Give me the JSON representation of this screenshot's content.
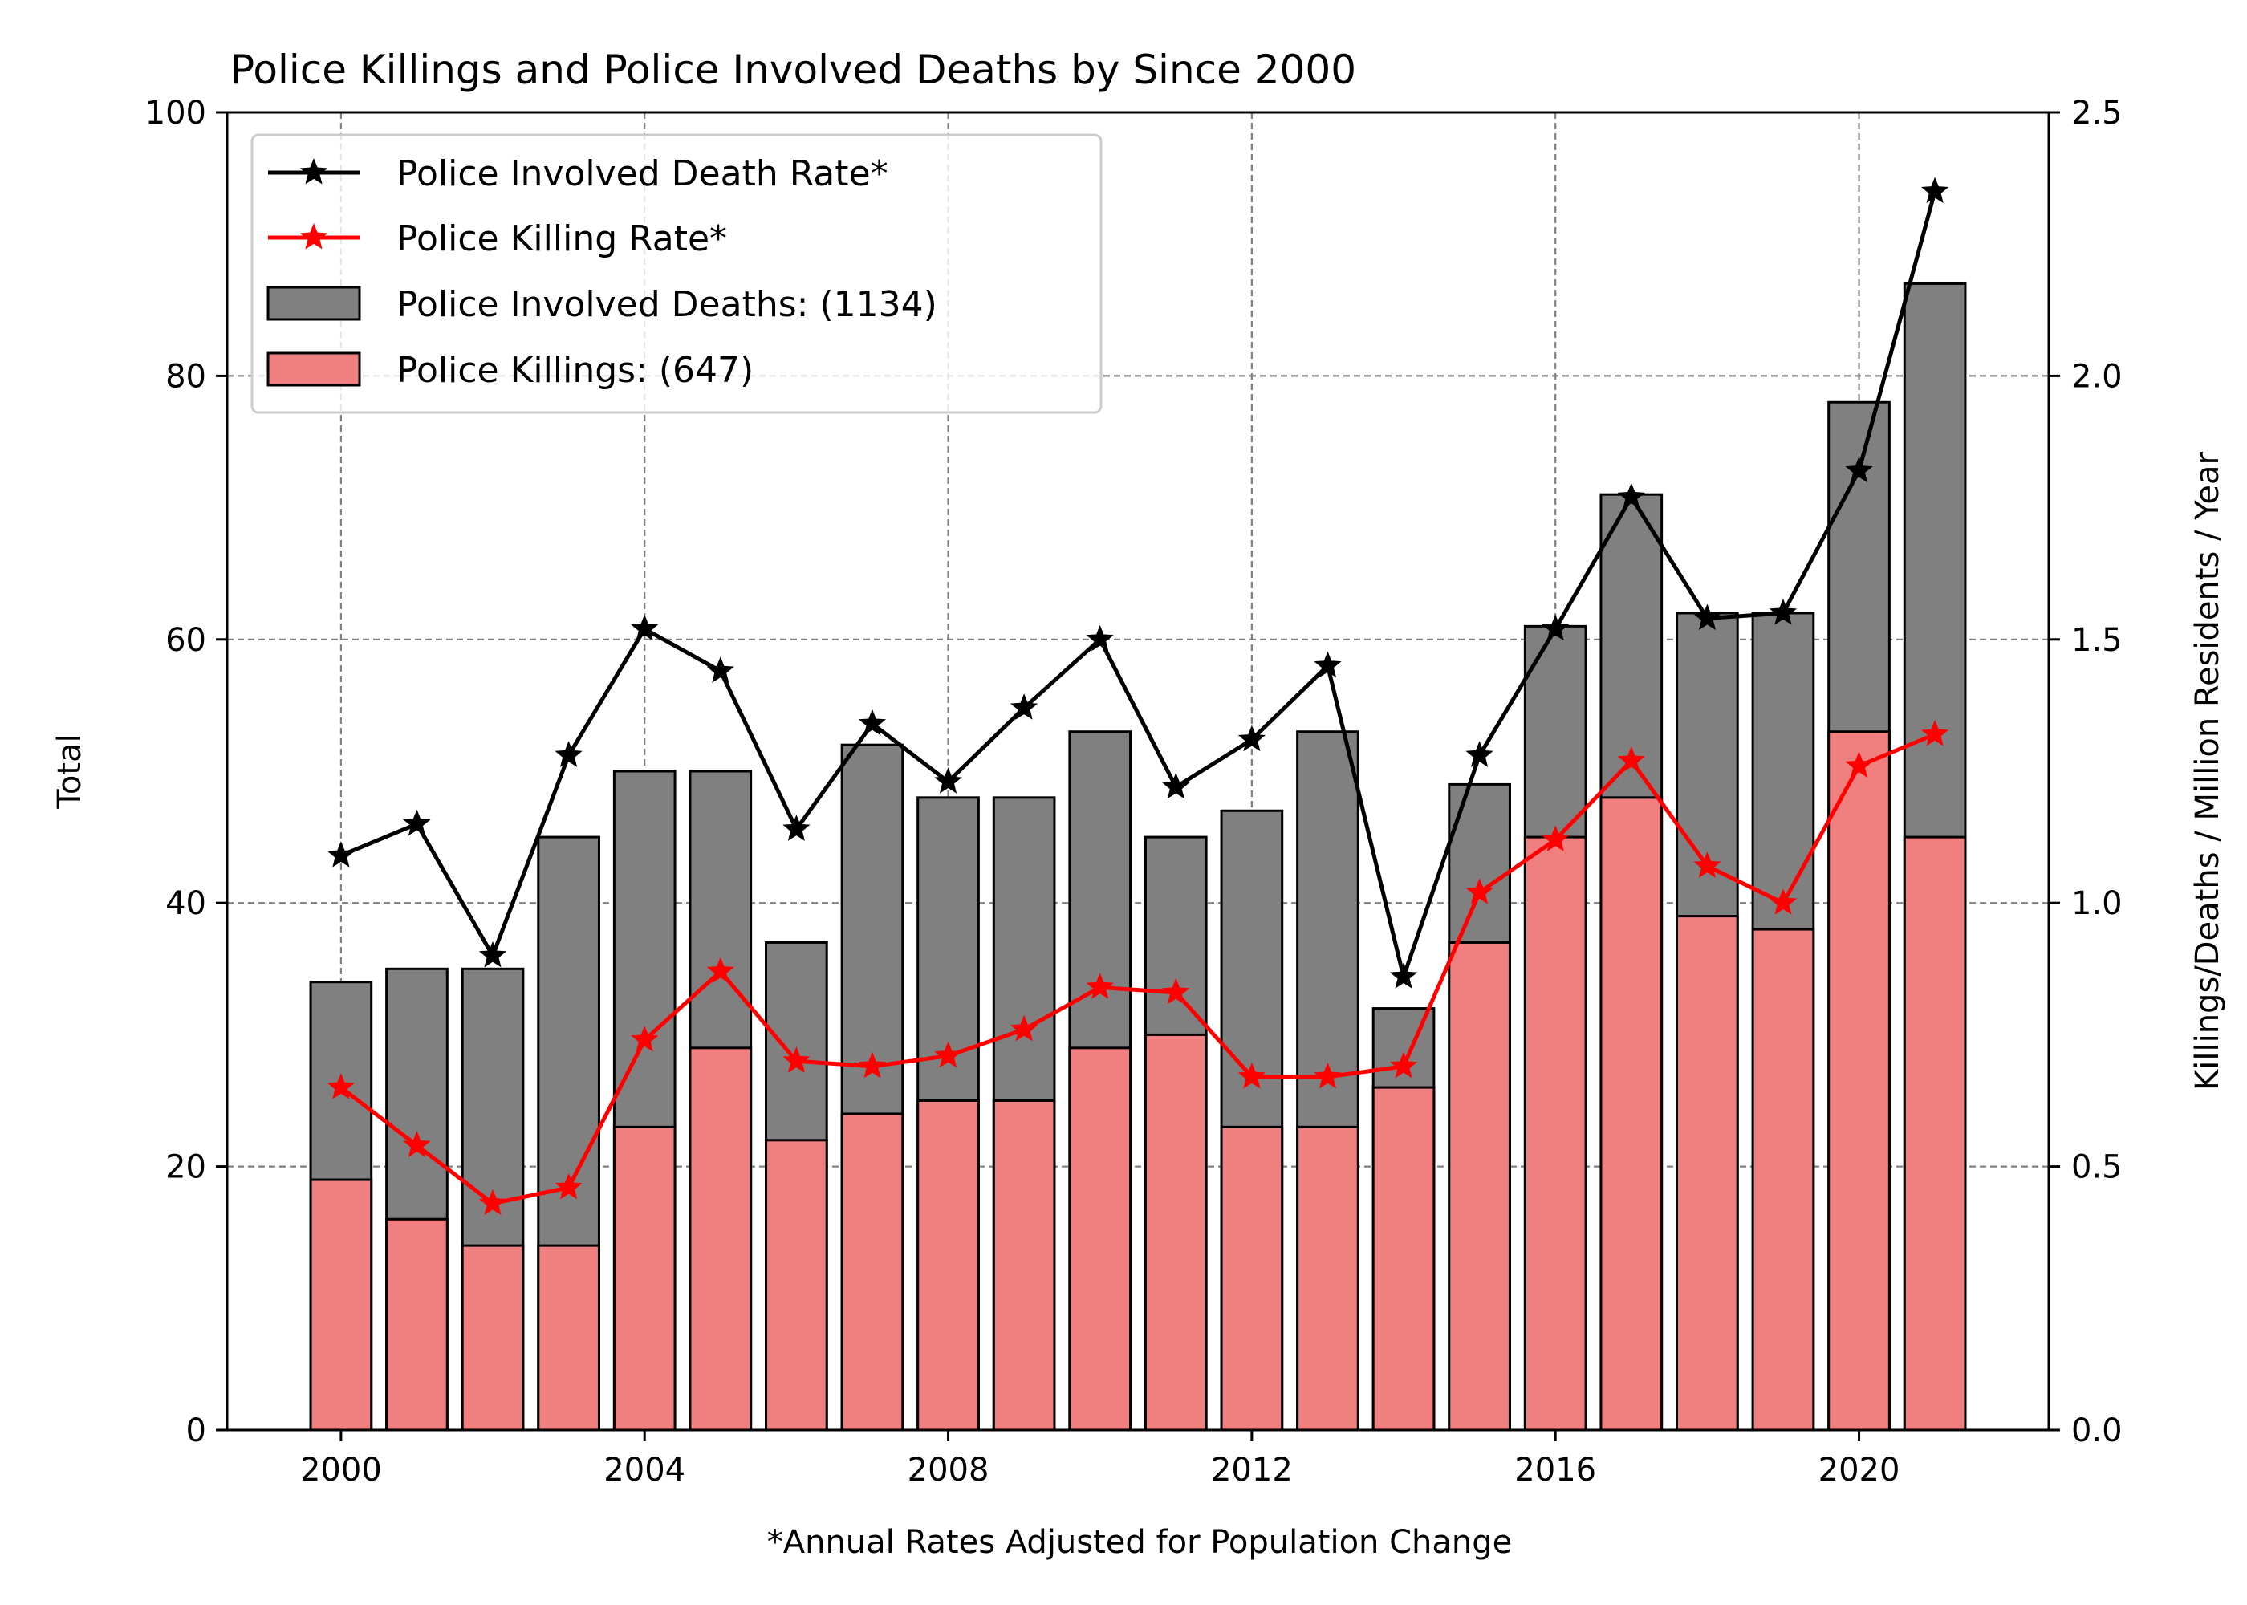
{
  "chart_data": {
    "type": "bar",
    "title": "Police Killings and Police Involved Deaths by Since 2000",
    "xlabel": "*Annual Rates Adjusted for Population Change",
    "ylabel": "Total",
    "y2label": "Killings/Deaths / Million Residents / Year",
    "x": [
      2000,
      2001,
      2002,
      2003,
      2004,
      2005,
      2006,
      2007,
      2008,
      2009,
      2010,
      2011,
      2012,
      2013,
      2014,
      2015,
      2016,
      2017,
      2018,
      2019,
      2020,
      2021
    ],
    "xlim": [
      1998.5,
      2022.5
    ],
    "ylim": [
      0,
      100
    ],
    "y2lim": [
      0,
      2.5
    ],
    "xticks": [
      2000,
      2004,
      2008,
      2012,
      2016,
      2020
    ],
    "yticks": [
      0,
      20,
      40,
      60,
      80,
      100
    ],
    "y2ticks": [
      "0.0",
      "0.5",
      "1.0",
      "1.5",
      "2.0",
      "2.5"
    ],
    "grid": true,
    "legend_position": "top-left",
    "series": [
      {
        "name": "Police Involved Deaths: (1134)",
        "kind": "bar",
        "axis": "left",
        "color": "#808080",
        "values": [
          34,
          35,
          35,
          45,
          50,
          50,
          37,
          52,
          48,
          48,
          53,
          45,
          47,
          53,
          32,
          49,
          61,
          71,
          62,
          62,
          78,
          87
        ]
      },
      {
        "name": "Police Killings: (647)",
        "kind": "bar",
        "axis": "left",
        "color": "#f08080",
        "values": [
          19,
          16,
          14,
          14,
          23,
          29,
          22,
          24,
          25,
          25,
          29,
          30,
          23,
          23,
          26,
          37,
          45,
          48,
          39,
          38,
          53,
          45
        ]
      },
      {
        "name": "Police Involved Death Rate*",
        "kind": "line",
        "axis": "right",
        "color": "#000000",
        "values": [
          1.09,
          1.15,
          0.9,
          1.28,
          1.52,
          1.44,
          1.14,
          1.34,
          1.23,
          1.37,
          1.5,
          1.22,
          1.31,
          1.45,
          0.86,
          1.28,
          1.52,
          1.77,
          1.54,
          1.55,
          1.82,
          2.35
        ]
      },
      {
        "name": "Police Killing Rate*",
        "kind": "line",
        "axis": "right",
        "color": "#ff0000",
        "values": [
          0.65,
          0.54,
          0.43,
          0.46,
          0.74,
          0.87,
          0.7,
          0.69,
          0.71,
          0.76,
          0.84,
          0.83,
          0.67,
          0.67,
          0.69,
          1.02,
          1.12,
          1.27,
          1.07,
          1.0,
          1.26,
          1.32
        ]
      }
    ],
    "legend_order": [
      "Police Involved Death Rate*",
      "Police Killing Rate*",
      "Police Involved Deaths: (1134)",
      "Police Killings: (647)"
    ]
  }
}
